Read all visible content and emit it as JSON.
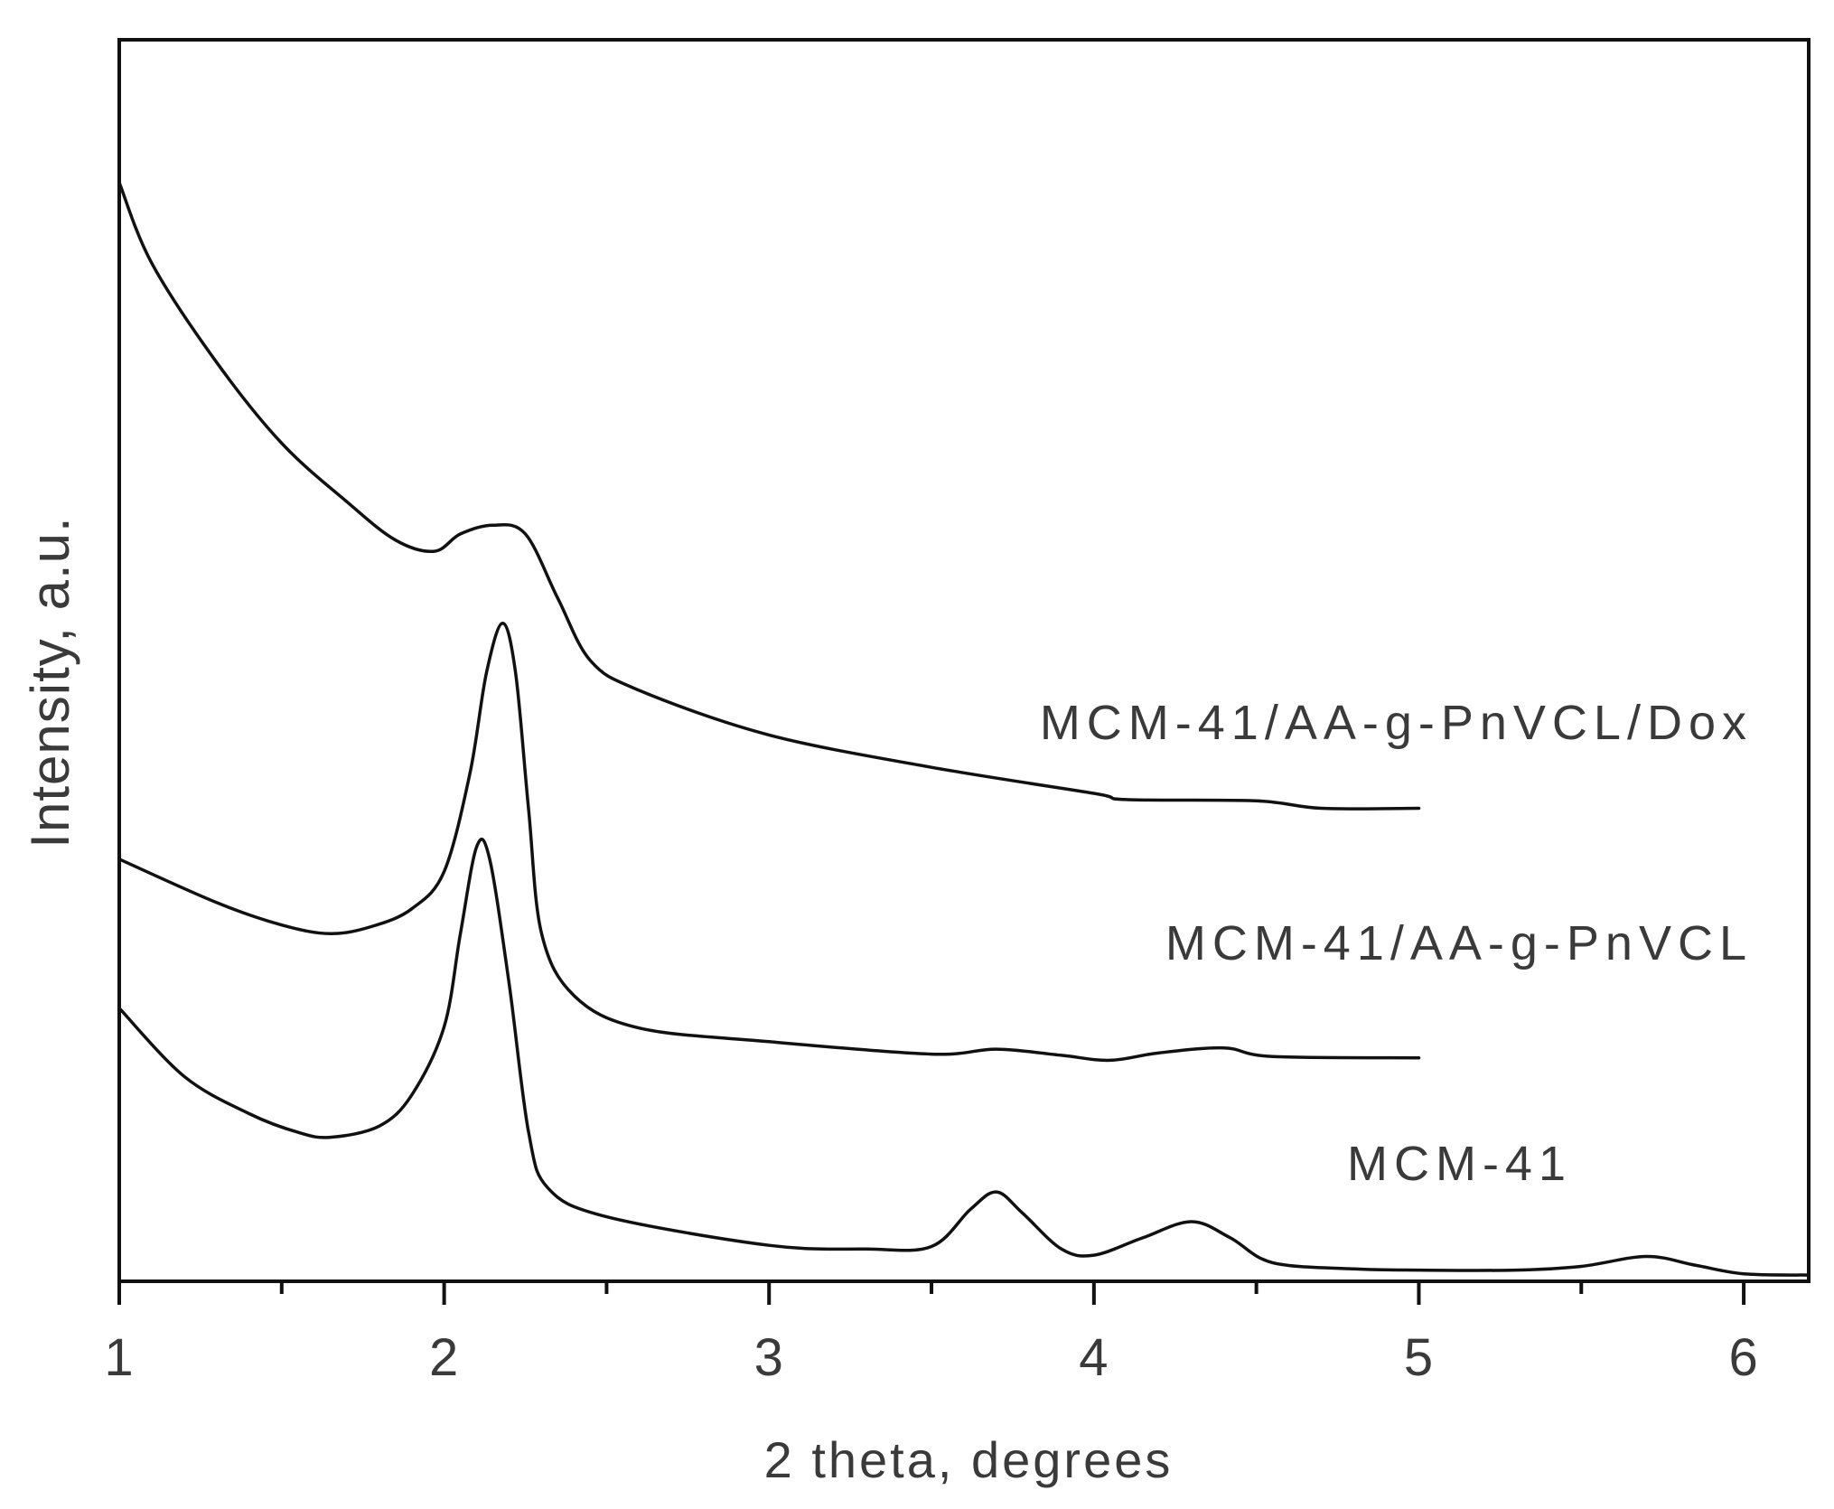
{
  "chart_data": {
    "type": "line",
    "xlabel": "2 theta, degrees",
    "ylabel": "Intensity, a.u.",
    "xlim": [
      1,
      6.2
    ],
    "ylim": [
      0,
      100
    ],
    "x_ticks": [
      1,
      2,
      3,
      4,
      5,
      6
    ],
    "x_minor_step": 0.5,
    "y_ticks_labeled": false,
    "grid": false,
    "series": [
      {
        "name": "MCM-41/AA-g-PnVCL/Dox",
        "points": [
          [
            1,
            88.5
          ],
          [
            1.1,
            82
          ],
          [
            1.3,
            74
          ],
          [
            1.5,
            67.5
          ],
          [
            1.7,
            62.8
          ],
          [
            1.85,
            59.7
          ],
          [
            1.97,
            58.8
          ],
          [
            2.05,
            60.2
          ],
          [
            2.15,
            60.9
          ],
          [
            2.25,
            60.2
          ],
          [
            2.35,
            55
          ],
          [
            2.45,
            50
          ],
          [
            2.6,
            47.6
          ],
          [
            3,
            44
          ],
          [
            3.5,
            41.4
          ],
          [
            4,
            39.3
          ],
          [
            4.1,
            38.8
          ],
          [
            4.5,
            38.7
          ],
          [
            4.7,
            38.1
          ],
          [
            5,
            38.1
          ]
        ]
      },
      {
        "name": "MCM-41/AA-g-PnVCL",
        "points": [
          [
            1,
            34
          ],
          [
            1.3,
            30.5
          ],
          [
            1.5,
            28.7
          ],
          [
            1.65,
            28
          ],
          [
            1.78,
            28.6
          ],
          [
            1.9,
            30
          ],
          [
            2.0,
            33
          ],
          [
            2.08,
            41
          ],
          [
            2.13,
            49
          ],
          [
            2.18,
            53
          ],
          [
            2.22,
            49
          ],
          [
            2.26,
            38
          ],
          [
            2.3,
            28
          ],
          [
            2.4,
            23
          ],
          [
            2.6,
            20.4
          ],
          [
            3,
            19.3
          ],
          [
            3.5,
            18.3
          ],
          [
            3.7,
            18.7
          ],
          [
            3.9,
            18.2
          ],
          [
            4.05,
            17.8
          ],
          [
            4.2,
            18.4
          ],
          [
            4.4,
            18.8
          ],
          [
            4.55,
            18.1
          ],
          [
            5,
            18.0
          ]
        ]
      },
      {
        "name": "MCM-41",
        "points": [
          [
            1,
            22
          ],
          [
            1.2,
            16.5
          ],
          [
            1.4,
            13.5
          ],
          [
            1.55,
            12
          ],
          [
            1.65,
            11.6
          ],
          [
            1.8,
            12.5
          ],
          [
            1.9,
            15
          ],
          [
            2.0,
            20.5
          ],
          [
            2.05,
            28
          ],
          [
            2.1,
            35
          ],
          [
            2.14,
            34
          ],
          [
            2.2,
            24
          ],
          [
            2.26,
            12
          ],
          [
            2.32,
            7.5
          ],
          [
            2.5,
            5.2
          ],
          [
            3,
            2.9
          ],
          [
            3.3,
            2.6
          ],
          [
            3.5,
            2.8
          ],
          [
            3.62,
            5.8
          ],
          [
            3.7,
            7.2
          ],
          [
            3.78,
            5.5
          ],
          [
            3.9,
            2.6
          ],
          [
            4.0,
            2.1
          ],
          [
            4.15,
            3.5
          ],
          [
            4.3,
            4.8
          ],
          [
            4.42,
            3.5
          ],
          [
            4.55,
            1.5
          ],
          [
            4.8,
            1
          ],
          [
            5,
            0.9
          ],
          [
            5.3,
            0.9
          ],
          [
            5.5,
            1.2
          ],
          [
            5.7,
            2.0
          ],
          [
            5.85,
            1.3
          ],
          [
            6,
            0.6
          ],
          [
            6.2,
            0.5
          ]
        ]
      }
    ]
  }
}
